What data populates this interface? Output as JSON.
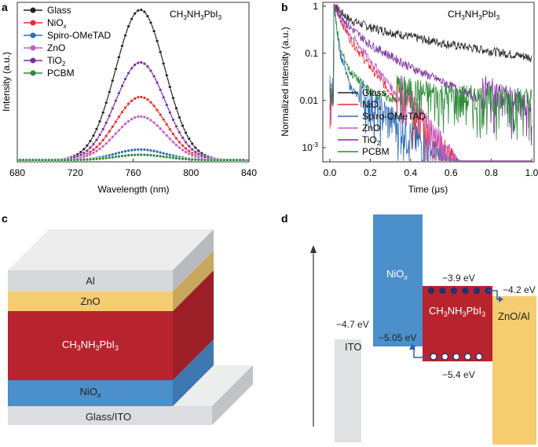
{
  "panels": {
    "a": {
      "letter": "a",
      "annotation": "CH3NH3PbI3",
      "annotation_parts": [
        "CH",
        "3",
        "NH",
        "3",
        "PbI",
        "3"
      ],
      "xlabel": "Wavelength (nm)",
      "ylabel": "Intensity (a.u.)",
      "xticks": [
        "680",
        "720",
        "760",
        "800",
        "840"
      ],
      "legend": [
        "Glass",
        "NiOx",
        "Spiro-OMeTAD",
        "ZnO",
        "TiO2",
        "PCBM"
      ],
      "legend_parts": [
        [
          "Glass",
          ""
        ],
        [
          "NiO",
          "x"
        ],
        [
          "Spiro-OMeTAD",
          ""
        ],
        [
          "ZnO",
          ""
        ],
        [
          "TiO",
          "2"
        ],
        [
          "PCBM",
          ""
        ]
      ]
    },
    "b": {
      "letter": "b",
      "annotation": "CH3NH3PbI3",
      "xlabel": "Time (μs)",
      "ylabel": "Normalized intensity (a.u.)",
      "xticks": [
        "0.0",
        "0.2",
        "0.4",
        "0.6",
        "0.8",
        "1.0"
      ],
      "yticks": [
        "1",
        "0.1",
        "0.01",
        "10^-3"
      ],
      "legend": [
        "Glass",
        "NiOx",
        "Spiro-OMeTAD",
        "ZnO",
        "TiO2",
        "PCBM"
      ]
    },
    "c": {
      "letter": "c",
      "layers": [
        "Al",
        "ZnO",
        "CH3NH3PbI3",
        "NiOx",
        "Glass/ITO"
      ]
    },
    "d": {
      "letter": "d",
      "materials": [
        "ITO",
        "NiOx",
        "CH3NH3PbI3",
        "ZnO/Al"
      ],
      "levels": [
        "−4.7 eV",
        "−5.05 eV",
        "−3.9 eV",
        "−5.4 eV",
        "−4.2 eV"
      ]
    }
  },
  "colors": {
    "Glass": "#222222",
    "NiOx": "#e8292a",
    "Spiro-OMeTAD": "#2f6db5",
    "ZnO": "#c45fc4",
    "TiO2": "#7a2a9c",
    "PCBM": "#2e8b3a",
    "al_layer": "#d7d8da",
    "zno_layer": "#f5cd70",
    "perov_layer": "#b8242e",
    "niox_layer": "#4b8fcb",
    "glass_layer": "#dcdde0",
    "ito_bar": "#e0e1e3"
  },
  "chart_data": [
    {
      "type": "line",
      "title": "",
      "xlabel": "Wavelength (nm)",
      "ylabel": "Intensity (a.u.)",
      "xlim": [
        680,
        840
      ],
      "ylim": [
        0,
        1.02
      ],
      "peak_nm": 765,
      "series": [
        {
          "name": "Glass",
          "peak": 1.0
        },
        {
          "name": "NiOx",
          "peak": 0.42
        },
        {
          "name": "Spiro-OMeTAD",
          "peak": 0.07
        },
        {
          "name": "ZnO",
          "peak": 0.29
        },
        {
          "name": "TiO2",
          "peak": 0.65
        },
        {
          "name": "PCBM",
          "peak": 0.035
        }
      ]
    },
    {
      "type": "line",
      "title": "",
      "xlabel": "Time (μs)",
      "ylabel": "Normalized intensity (a.u.)",
      "xlim": [
        0,
        1.0
      ],
      "ylim": [
        0.0005,
        1.2
      ],
      "yscale": "log",
      "series": [
        {
          "name": "Glass",
          "x": [
            0.02,
            0.1,
            0.2,
            0.4,
            0.6,
            0.8,
            1.0
          ],
          "y": [
            1.0,
            0.5,
            0.35,
            0.22,
            0.15,
            0.11,
            0.08
          ]
        },
        {
          "name": "NiOx",
          "x": [
            0.02,
            0.1,
            0.2,
            0.3,
            0.4
          ],
          "y": [
            1.0,
            0.2,
            0.05,
            0.015,
            0.004
          ]
        },
        {
          "name": "Spiro-OMeTAD",
          "x": [
            0.02,
            0.05,
            0.1,
            0.2,
            0.4
          ],
          "y": [
            1.0,
            0.1,
            0.02,
            0.005,
            0.001
          ]
        },
        {
          "name": "ZnO",
          "x": [
            0.02,
            0.1,
            0.2,
            0.3,
            0.4
          ],
          "y": [
            1.0,
            0.25,
            0.07,
            0.02,
            0.005
          ]
        },
        {
          "name": "TiO2",
          "x": [
            0.02,
            0.1,
            0.2,
            0.4,
            0.6,
            0.8
          ],
          "y": [
            1.0,
            0.35,
            0.15,
            0.05,
            0.02,
            0.008
          ]
        },
        {
          "name": "PCBM",
          "x": [
            0.02,
            0.05,
            0.1,
            0.2,
            0.4,
            0.6,
            1.0
          ],
          "y": [
            1.0,
            0.12,
            0.04,
            0.015,
            0.008,
            0.006,
            0.005
          ]
        }
      ]
    }
  ]
}
